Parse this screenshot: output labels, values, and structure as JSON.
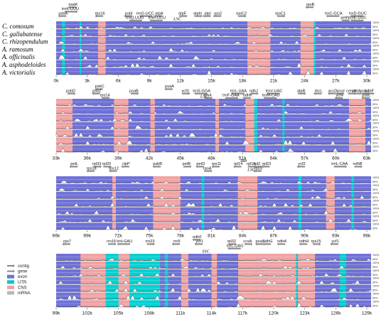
{
  "species": [
    "C. comosum",
    "C. gallabatense",
    "C. rhizopendulum",
    "A. ramosum",
    "A. officinalis",
    "A. asphodeloides",
    "A. victorialis"
  ],
  "y_axis_labels": [
    "100%",
    "50%"
  ],
  "legend": [
    {
      "label": "contig",
      "color": "#888888",
      "kind": "arrow"
    },
    {
      "label": "gene",
      "color": "#888888",
      "kind": "arrow"
    },
    {
      "label": "exon",
      "color": "#6f72d8",
      "kind": "box"
    },
    {
      "label": "UTR",
      "color": "#00c8c8",
      "kind": "box"
    },
    {
      "label": "CNS",
      "color": "#f4a0a0",
      "kind": "box"
    },
    {
      "label": "mRNA",
      "color": "#b9b9b9",
      "kind": "box"
    }
  ],
  "colors": {
    "exon": "#6f72d8",
    "utr": "#00d2d2",
    "cns": "#f2a3a3",
    "gray": "#8c8c8c",
    "bg": "#ffffff"
  },
  "panels": [
    {
      "ticks": [
        "0k",
        "3k",
        "6k",
        "9k",
        "12k",
        "15k",
        "18k",
        "21k",
        "24k",
        "27k",
        "30k"
      ],
      "region_labels": [
        {
          "text": "LSC",
          "at": 0.385
        }
      ],
      "genes": [
        {
          "name": "matK",
          "at": 0.054,
          "row": 0
        },
        {
          "name": "trnK-UUU",
          "at": 0.045,
          "row": 1
        },
        {
          "name": "psbA",
          "at": 0.022,
          "row": 2
        },
        {
          "name": "rps16",
          "at": 0.139,
          "row": 2
        },
        {
          "name": "psbI",
          "at": 0.231,
          "row": 2
        },
        {
          "name": "trnG-UCC",
          "at": 0.283,
          "row": 2
        },
        {
          "name": "atpA",
          "at": 0.327,
          "row": 2
        },
        {
          "name": "atpF",
          "at": 0.401,
          "row": 2
        },
        {
          "name": "atpH",
          "at": 0.449,
          "row": 2
        },
        {
          "name": "atpI",
          "at": 0.481,
          "row": 2
        },
        {
          "name": "rps2",
          "at": 0.514,
          "row": 2
        },
        {
          "name": "rpoC2",
          "at": 0.588,
          "row": 2
        },
        {
          "name": "rpoC1",
          "at": 0.712,
          "row": 2
        },
        {
          "name": "rpoB",
          "at": 0.807,
          "row": 0
        },
        {
          "name": "trnC-GCA",
          "at": 0.881,
          "row": 2
        },
        {
          "name": "trnD-GUC",
          "at": 0.958,
          "row": 2
        },
        {
          "name": "trnQ-UUG",
          "at": 0.25,
          "row": 3
        },
        {
          "name": "trnR-UCU",
          "at": 0.32,
          "row": 3
        },
        {
          "name": "petN",
          "at": 0.917,
          "row": 3
        },
        {
          "name": "trnE-UUC",
          "at": 0.958,
          "row": 3
        }
      ]
    },
    {
      "ticks": [
        "33k",
        "36k",
        "39k",
        "42k",
        "45k",
        "48k",
        "51k",
        "54k",
        "57k",
        "60k",
        "63k"
      ],
      "region_labels": [
        {
          "text": "LSC",
          "at": 0.47
        }
      ],
      "genes": [
        {
          "name": "psbC",
          "at": 0.138,
          "row": 1
        },
        {
          "name": "psbD",
          "at": 0.046,
          "row": 2
        },
        {
          "name": "psbZ",
          "at": 0.129,
          "row": 2
        },
        {
          "name": "psaB",
          "at": 0.247,
          "row": 2
        },
        {
          "name": "psaA",
          "at": 0.36,
          "row": 1
        },
        {
          "name": "ycf3",
          "at": 0.41,
          "row": 2
        },
        {
          "name": "trnS-GGA",
          "at": 0.462,
          "row": 2
        },
        {
          "name": "trnL-UAA",
          "at": 0.579,
          "row": 2
        },
        {
          "name": "ndhJ",
          "at": 0.627,
          "row": 2
        },
        {
          "name": "trnV-UAC",
          "at": 0.692,
          "row": 2
        },
        {
          "name": "atpB",
          "at": 0.778,
          "row": 2
        },
        {
          "name": "rbcL",
          "at": 0.833,
          "row": 2
        },
        {
          "name": "accD",
          "at": 0.878,
          "row": 2
        },
        {
          "name": "psaI",
          "at": 0.904,
          "row": 2
        },
        {
          "name": "cemA",
          "at": 0.937,
          "row": 2
        },
        {
          "name": "petA",
          "at": 0.954,
          "row": 2
        },
        {
          "name": "psbJ",
          "at": 0.98,
          "row": 2
        },
        {
          "name": "psbF",
          "at": 0.995,
          "row": 2
        },
        {
          "name": "rps14",
          "at": 0.155,
          "row": 3
        },
        {
          "name": "rps4",
          "at": 0.481,
          "row": 3
        },
        {
          "name": "trnF-GAA",
          "at": 0.555,
          "row": 3
        },
        {
          "name": "ndhK",
          "at": 0.608,
          "row": 3
        },
        {
          "name": "trnM-CAU",
          "at": 0.682,
          "row": 3
        },
        {
          "name": "ycf4",
          "at": 0.9,
          "row": 3
        },
        {
          "name": "psbL",
          "at": 0.985,
          "row": 3
        }
      ]
    },
    {
      "ticks": [
        "66k",
        "69k",
        "72k",
        "75k",
        "78k",
        "81k",
        "84k",
        "87k",
        "90k",
        "93k",
        "96k"
      ],
      "region_labels": [
        {
          "text": "IRb",
          "at": 0.595,
          "row": 0
        },
        {
          "text": "LSC",
          "at": 0.62,
          "row": 2
        }
      ],
      "genes": [
        {
          "name": "petL",
          "at": 0.058,
          "row": 1
        },
        {
          "name": "rpl33",
          "at": 0.129,
          "row": 1
        },
        {
          "name": "rpl20",
          "at": 0.16,
          "row": 1
        },
        {
          "name": "clpP",
          "at": 0.222,
          "row": 1
        },
        {
          "name": "psbB",
          "at": 0.322,
          "row": 1
        },
        {
          "name": "petB",
          "at": 0.414,
          "row": 1
        },
        {
          "name": "petD",
          "at": 0.459,
          "row": 1
        },
        {
          "name": "rps11",
          "at": 0.509,
          "row": 1
        },
        {
          "name": "rpl14",
          "at": 0.578,
          "row": 1
        },
        {
          "name": "rpl16",
          "at": 0.619,
          "row": 1
        },
        {
          "name": "rpl2",
          "at": 0.638,
          "row": 1
        },
        {
          "name": "rpl23",
          "at": 0.668,
          "row": 1
        },
        {
          "name": "ycf2",
          "at": 0.78,
          "row": 1
        },
        {
          "name": "trnL-CAA",
          "at": 0.9,
          "row": 1
        },
        {
          "name": "ndhB",
          "at": 0.957,
          "row": 1
        },
        {
          "name": "rps18",
          "at": 0.112,
          "row": 2
        },
        {
          "name": "rps12",
          "at": 0.183,
          "row": 2
        },
        {
          "name": "rpoA",
          "at": 0.48,
          "row": 2
        },
        {
          "name": "rps3",
          "at": 0.642,
          "row": 2
        }
      ]
    },
    {
      "ticks": [
        "99k",
        "102k",
        "105k",
        "108k",
        "111k",
        "114k",
        "117k",
        "120k",
        "123k",
        "126k",
        "129k"
      ],
      "region_labels": [
        {
          "text": "SSC",
          "at": 0.475
        }
      ],
      "genes": [
        {
          "name": "ndhF",
          "at": 0.448,
          "row": 0
        },
        {
          "name": "rps7",
          "at": 0.035,
          "row": 1
        },
        {
          "name": "rrn16",
          "at": 0.175,
          "row": 1
        },
        {
          "name": "trnI-GAU",
          "at": 0.217,
          "row": 1
        },
        {
          "name": "rrn23",
          "at": 0.298,
          "row": 1
        },
        {
          "name": "rrn5",
          "at": 0.383,
          "row": 1
        },
        {
          "name": "ycf1",
          "at": 0.455,
          "row": 1
        },
        {
          "name": "rpl32",
          "at": 0.557,
          "row": 1
        },
        {
          "name": "ccsA",
          "at": 0.608,
          "row": 1
        },
        {
          "name": "psaC",
          "at": 0.648,
          "row": 1
        },
        {
          "name": "ndhG",
          "at": 0.672,
          "row": 1
        },
        {
          "name": "ndhA",
          "at": 0.717,
          "row": 1
        },
        {
          "name": "ndhH",
          "at": 0.787,
          "row": 1
        },
        {
          "name": "rps15",
          "at": 0.825,
          "row": 1
        },
        {
          "name": "ycf1",
          "at": 0.886,
          "row": 1
        },
        {
          "name": "trnL-UAG",
          "at": 0.568,
          "row": 2
        }
      ]
    }
  ]
}
